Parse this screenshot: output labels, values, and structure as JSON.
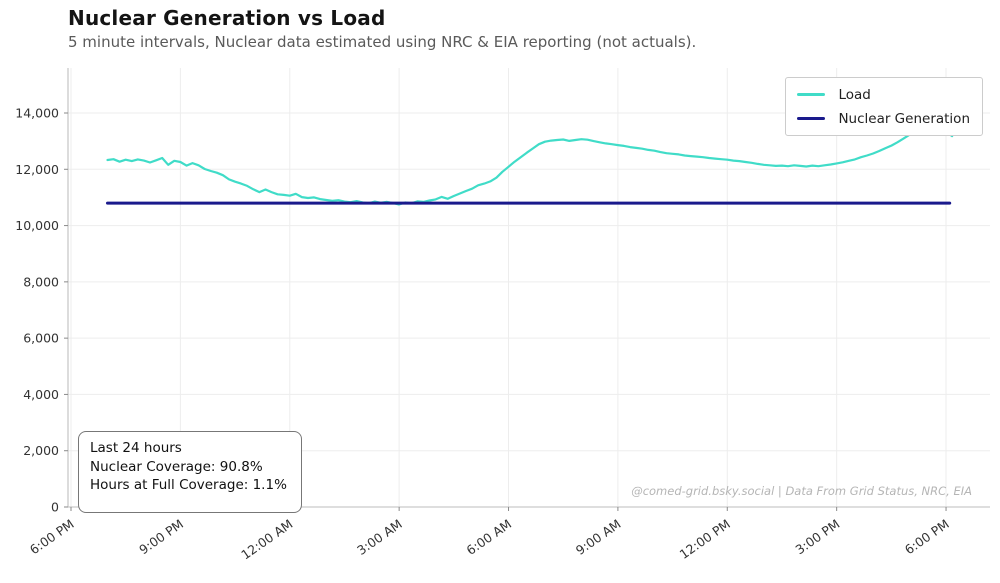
{
  "chart_data": {
    "type": "line",
    "title": "Nuclear Generation vs Load",
    "subtitle": "5 minute intervals, Nuclear data estimated using NRC & EIA reporting (not actuals).",
    "xlabel": "",
    "ylabel": "",
    "x_unit": "hours since 6:00 PM (24-hour window)",
    "y_unit": "MW",
    "xlim_hours": [
      -0.1,
      25.2
    ],
    "ylim": [
      0,
      15600
    ],
    "grid": true,
    "legend_position": "upper right",
    "x_ticks": {
      "hours": [
        0,
        3,
        6,
        9,
        12,
        15,
        18,
        21,
        24
      ],
      "labels": [
        "6:00 PM",
        "9:00 PM",
        "12:00 AM",
        "3:00 AM",
        "6:00 AM",
        "9:00 AM",
        "12:00 PM",
        "3:00 PM",
        "6:00 PM"
      ]
    },
    "y_ticks": {
      "values": [
        0,
        2000,
        4000,
        6000,
        8000,
        10000,
        12000,
        14000
      ],
      "labels": [
        "0",
        "2,000",
        "4,000",
        "6,000",
        "8,000",
        "10,000",
        "12,000",
        "14,000"
      ]
    },
    "series": [
      {
        "name": "Load",
        "color": "#40dcc8",
        "line_width": 2.2,
        "sampling": "10-minute estimates read from plot",
        "start_hour": 1.0,
        "step_hours": 0.1666667,
        "values": [
          12330,
          12360,
          12270,
          12340,
          12290,
          12350,
          12310,
          12240,
          12320,
          12400,
          12160,
          12300,
          12260,
          12130,
          12220,
          12140,
          12010,
          11940,
          11880,
          11790,
          11640,
          11560,
          11490,
          11410,
          11290,
          11190,
          11280,
          11190,
          11110,
          11090,
          11060,
          11130,
          11010,
          10980,
          11000,
          10940,
          10910,
          10880,
          10900,
          10850,
          10830,
          10870,
          10820,
          10790,
          10850,
          10810,
          10840,
          10800,
          10750,
          10820,
          10790,
          10860,
          10840,
          10890,
          10930,
          11020,
          10950,
          11050,
          11140,
          11230,
          11310,
          11430,
          11490,
          11570,
          11700,
          11910,
          12090,
          12270,
          12430,
          12590,
          12740,
          12890,
          12980,
          13020,
          13040,
          13060,
          13010,
          13040,
          13070,
          13050,
          13000,
          12960,
          12920,
          12890,
          12860,
          12830,
          12790,
          12760,
          12730,
          12690,
          12660,
          12610,
          12570,
          12550,
          12530,
          12490,
          12470,
          12450,
          12430,
          12400,
          12380,
          12360,
          12340,
          12310,
          12290,
          12260,
          12230,
          12190,
          12160,
          12140,
          12120,
          12130,
          12110,
          12140,
          12120,
          12100,
          12130,
          12110,
          12140,
          12170,
          12210,
          12250,
          12300,
          12350,
          12430,
          12490,
          12560,
          12650,
          12750,
          12840,
          12960,
          13090,
          13230,
          13350,
          13440,
          13490,
          13480,
          13310,
          13330,
          13180
        ]
      },
      {
        "name": "Nuclear Generation",
        "color": "#1a1a8c",
        "line_width": 3,
        "points_hours_mw": [
          [
            1.0,
            10800
          ],
          [
            24.1,
            10800
          ]
        ]
      }
    ],
    "annotation_box": {
      "lines": [
        "Last 24 hours",
        "Nuclear Coverage: 90.8%",
        "Hours at Full Coverage: 1.1%"
      ]
    },
    "watermark": "@comed-grid.bsky.social | Data From Grid Status, NRC, EIA"
  }
}
